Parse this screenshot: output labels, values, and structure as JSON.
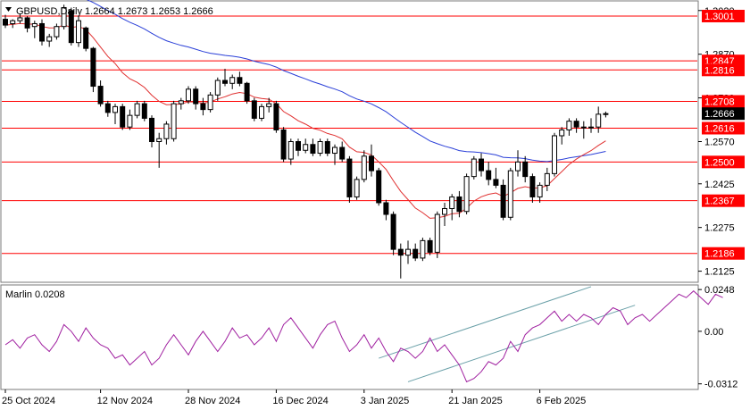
{
  "header": {
    "symbol_line": "GBPUSD,Daily  1.2664  1.2673  1.2653  1.2666",
    "dropdown_icon": "triangle-down-icon"
  },
  "main_axis": {
    "tick_labels": [
      "1.3020",
      "1.2870",
      "1.2720",
      "1.2570",
      "1.2425",
      "1.2275",
      "1.2125"
    ],
    "tick_values": [
      1.302,
      1.287,
      1.272,
      1.257,
      1.2425,
      1.2275,
      1.2125
    ],
    "range": [
      1.209,
      1.305
    ]
  },
  "levels": [
    {
      "label": "1.3001",
      "value": 1.3001
    },
    {
      "label": "1.2847",
      "value": 1.2847
    },
    {
      "label": "1.2816",
      "value": 1.2816
    },
    {
      "label": "1.2708",
      "value": 1.2708
    },
    {
      "label": "1.2616",
      "value": 1.2616
    },
    {
      "label": "1.2500",
      "value": 1.25
    },
    {
      "label": "1.2367",
      "value": 1.2367
    },
    {
      "label": "1.2186",
      "value": 1.2186
    }
  ],
  "current_price": {
    "label": "1.2666",
    "value": 1.2666
  },
  "indicator": {
    "label": "Marlin 0.0208",
    "tick_labels": [
      "0.0248",
      "0.00",
      "-0.0312"
    ],
    "tick_values": [
      0.0248,
      0.0,
      -0.0312
    ],
    "range": [
      -0.034,
      0.027
    ],
    "values": [
      -0.008,
      -0.005,
      -0.01,
      -0.004,
      -0.002,
      -0.008,
      -0.012,
      -0.006,
      0.004,
      0.0,
      -0.006,
      0.002,
      -0.004,
      -0.008,
      -0.01,
      -0.016,
      -0.014,
      -0.02,
      -0.016,
      -0.012,
      -0.02,
      -0.016,
      -0.008,
      -0.002,
      -0.008,
      -0.014,
      -0.006,
      0.0,
      -0.006,
      -0.012,
      -0.006,
      0.002,
      -0.004,
      -0.002,
      -0.008,
      -0.004,
      0.002,
      -0.006,
      0.004,
      0.008,
      0.002,
      -0.004,
      -0.01,
      -0.002,
      0.004,
      0.006,
      -0.004,
      -0.012,
      -0.008,
      -0.002,
      -0.01,
      -0.004,
      -0.012,
      -0.018,
      -0.01,
      -0.012,
      -0.016,
      -0.012,
      -0.004,
      -0.012,
      -0.008,
      -0.014,
      -0.02,
      -0.03,
      -0.028,
      -0.024,
      -0.018,
      -0.02,
      -0.016,
      -0.006,
      -0.012,
      -0.002,
      0.002,
      0.004,
      0.008,
      0.012,
      0.006,
      0.01,
      0.006,
      0.01,
      0.008,
      0.004,
      0.01,
      0.014,
      0.012,
      0.004,
      0.008,
      0.01,
      0.006,
      0.01,
      0.014,
      0.018,
      0.022,
      0.02,
      0.024,
      0.02,
      0.016,
      0.022,
      0.02
    ]
  },
  "chart_data": {
    "type": "candlestick",
    "symbol": "GBPUSD",
    "timeframe": "Daily",
    "x_tick_labels": [
      "25 Oct 2024",
      "12 Nov 2024",
      "28 Nov 2024",
      "16 Dec 2024",
      "3 Jan 2025",
      "21 Jan 2025",
      "6 Feb 2025"
    ],
    "x_tick_bar_index": [
      0,
      13,
      25,
      37,
      49,
      61,
      73
    ],
    "ohlc": [
      [
        1.299,
        1.3005,
        1.296,
        1.297
      ],
      [
        1.2975,
        1.299,
        1.296,
        1.2985
      ],
      [
        1.2985,
        1.301,
        1.2975,
        1.2995
      ],
      [
        1.2995,
        1.3,
        1.2945,
        1.296
      ],
      [
        1.2965,
        1.2985,
        1.2925,
        1.2975
      ],
      [
        1.2975,
        1.299,
        1.29,
        1.2915
      ],
      [
        1.2915,
        1.294,
        1.2895,
        1.293
      ],
      [
        1.293,
        1.2975,
        1.292,
        1.2965
      ],
      [
        1.2965,
        1.304,
        1.2955,
        1.303
      ],
      [
        1.302,
        1.303,
        1.29,
        1.291
      ],
      [
        1.291,
        1.3,
        1.2895,
        1.2985
      ],
      [
        1.296,
        1.2965,
        1.288,
        1.289
      ],
      [
        1.289,
        1.2895,
        1.274,
        1.276
      ],
      [
        1.276,
        1.278,
        1.269,
        1.27
      ],
      [
        1.27,
        1.271,
        1.2655,
        1.267
      ],
      [
        1.267,
        1.27,
        1.263,
        1.269
      ],
      [
        1.269,
        1.27,
        1.261,
        1.262
      ],
      [
        1.262,
        1.268,
        1.261,
        1.266
      ],
      [
        1.266,
        1.271,
        1.265,
        1.27
      ],
      [
        1.27,
        1.271,
        1.264,
        1.265
      ],
      [
        1.265,
        1.266,
        1.255,
        1.257
      ],
      [
        1.257,
        1.26,
        1.248,
        1.258
      ],
      [
        1.258,
        1.264,
        1.256,
        1.263
      ],
      [
        1.258,
        1.271,
        1.257,
        1.27
      ],
      [
        1.27,
        1.272,
        1.268,
        1.271
      ],
      [
        1.271,
        1.276,
        1.27,
        1.275
      ],
      [
        1.275,
        1.276,
        1.268,
        1.27
      ],
      [
        1.27,
        1.272,
        1.266,
        1.268
      ],
      [
        1.268,
        1.274,
        1.267,
        1.273
      ],
      [
        1.273,
        1.279,
        1.271,
        1.278
      ],
      [
        1.278,
        1.282,
        1.276,
        1.277
      ],
      [
        1.277,
        1.28,
        1.275,
        1.279
      ],
      [
        1.279,
        1.281,
        1.276,
        1.277
      ],
      [
        1.277,
        1.2775,
        1.27,
        1.271
      ],
      [
        1.271,
        1.272,
        1.264,
        1.265
      ],
      [
        1.265,
        1.27,
        1.264,
        1.269
      ],
      [
        1.269,
        1.272,
        1.267,
        1.27
      ],
      [
        1.27,
        1.271,
        1.26,
        1.261
      ],
      [
        1.261,
        1.262,
        1.25,
        1.251
      ],
      [
        1.251,
        1.258,
        1.249,
        1.257
      ],
      [
        1.257,
        1.258,
        1.252,
        1.254
      ],
      [
        1.254,
        1.258,
        1.253,
        1.256
      ],
      [
        1.256,
        1.258,
        1.252,
        1.253
      ],
      [
        1.253,
        1.258,
        1.252,
        1.257
      ],
      [
        1.257,
        1.258,
        1.252,
        1.253
      ],
      [
        1.253,
        1.256,
        1.249,
        1.255
      ],
      [
        1.255,
        1.257,
        1.25,
        1.251
      ],
      [
        1.251,
        1.252,
        1.236,
        1.238
      ],
      [
        1.238,
        1.245,
        1.237,
        1.244
      ],
      [
        1.244,
        1.254,
        1.243,
        1.252
      ],
      [
        1.252,
        1.256,
        1.245,
        1.247
      ],
      [
        1.247,
        1.248,
        1.235,
        1.236
      ],
      [
        1.236,
        1.237,
        1.23,
        1.232
      ],
      [
        1.232,
        1.233,
        1.218,
        1.22
      ],
      [
        1.22,
        1.222,
        1.21,
        1.218
      ],
      [
        1.218,
        1.223,
        1.215,
        1.22
      ],
      [
        1.22,
        1.222,
        1.216,
        1.217
      ],
      [
        1.217,
        1.224,
        1.216,
        1.223
      ],
      [
        1.223,
        1.224,
        1.218,
        1.219
      ],
      [
        1.219,
        1.233,
        1.217,
        1.232
      ],
      [
        1.232,
        1.236,
        1.228,
        1.234
      ],
      [
        1.234,
        1.239,
        1.23,
        1.238
      ],
      [
        1.238,
        1.24,
        1.231,
        1.233
      ],
      [
        1.233,
        1.246,
        1.232,
        1.245
      ],
      [
        1.245,
        1.252,
        1.244,
        1.251
      ],
      [
        1.251,
        1.253,
        1.245,
        1.247
      ],
      [
        1.247,
        1.25,
        1.242,
        1.244
      ],
      [
        1.244,
        1.248,
        1.241,
        1.242
      ],
      [
        1.242,
        1.244,
        1.23,
        1.231
      ],
      [
        1.231,
        1.248,
        1.23,
        1.247
      ],
      [
        1.247,
        1.254,
        1.245,
        1.25
      ],
      [
        1.25,
        1.252,
        1.243,
        1.245
      ],
      [
        1.245,
        1.246,
        1.236,
        1.238
      ],
      [
        1.238,
        1.243,
        1.236,
        1.242
      ],
      [
        1.242,
        1.248,
        1.24,
        1.246
      ],
      [
        1.246,
        1.26,
        1.245,
        1.259
      ],
      [
        1.259,
        1.262,
        1.256,
        1.261
      ],
      [
        1.261,
        1.265,
        1.259,
        1.264
      ],
      [
        1.264,
        1.265,
        1.26,
        1.262
      ],
      [
        1.262,
        1.264,
        1.258,
        1.262
      ],
      [
        1.262,
        1.265,
        1.26,
        1.262
      ],
      [
        1.262,
        1.269,
        1.26,
        1.2664
      ],
      [
        1.2664,
        1.2673,
        1.2653,
        1.2666
      ]
    ],
    "series": [
      {
        "type": "moving-average",
        "color": "#e03030"
      },
      {
        "type": "moving-average",
        "color": "#2a3fd8"
      }
    ],
    "ylim": [
      1.209,
      1.305
    ],
    "grid": false
  },
  "colors": {
    "level_line": "#ff0000",
    "level_label_bg": "#ff0000",
    "bull_body": "#ffffff",
    "bear_body": "#000000",
    "fast_ma": "#e03030",
    "slow_ma": "#2a3fd8",
    "indicator_line": "#a020a0",
    "channel_line": "#6aa0a8",
    "price_label_bg": "#000000"
  }
}
